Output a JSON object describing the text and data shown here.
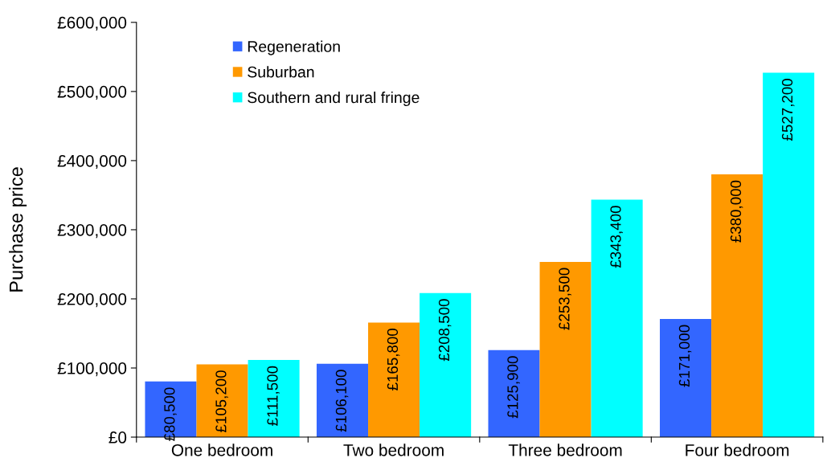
{
  "chart_data": {
    "type": "bar",
    "ylabel": "Purchase price",
    "categories": [
      "One bedroom",
      "Two bedroom",
      "Three bedroom",
      "Four bedroom"
    ],
    "series": [
      {
        "name": "Regeneration",
        "color": "#3366ff",
        "values": [
          80500,
          106100,
          125900,
          171000
        ],
        "value_labels": [
          "£80,500",
          "£106,100",
          "£125,900",
          "£171,000"
        ]
      },
      {
        "name": "Suburban",
        "color": "#ff9900",
        "values": [
          105200,
          165800,
          253500,
          380000
        ],
        "value_labels": [
          "£105,200",
          "£165,800",
          "£253,500",
          "£380,000"
        ]
      },
      {
        "name": "Southern and rural fringe",
        "color": "#00ffff",
        "values": [
          111500,
          208500,
          343400,
          527200
        ],
        "value_labels": [
          "£111,500",
          "£208,500",
          "£343,400",
          "£527,200"
        ]
      }
    ],
    "ylim": [
      0,
      600000
    ],
    "yticks": [
      {
        "value": 0,
        "label": "£0"
      },
      {
        "value": 100000,
        "label": "£100,000"
      },
      {
        "value": 200000,
        "label": "£200,000"
      },
      {
        "value": 300000,
        "label": "£300,000"
      },
      {
        "value": 400000,
        "label": "£400,000"
      },
      {
        "value": 500000,
        "label": "£500,000"
      },
      {
        "value": 600000,
        "label": "£600,000"
      }
    ],
    "grid": false,
    "legend": "top left"
  }
}
